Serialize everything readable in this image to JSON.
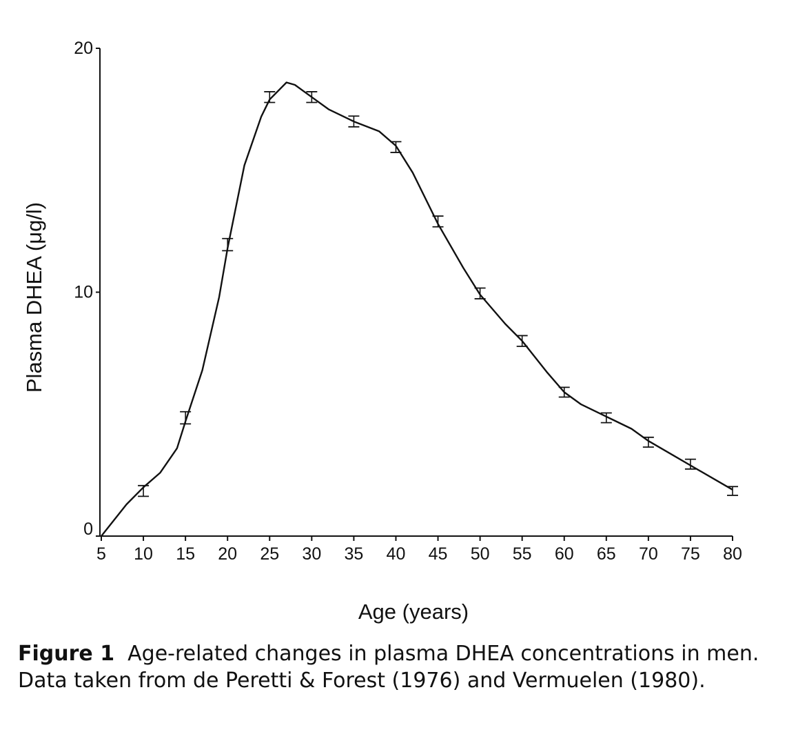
{
  "chart_data": {
    "type": "line",
    "xlabel": "Age (years)",
    "ylabel": "Plasma DHEA (μg/l)",
    "xlim": [
      5,
      80
    ],
    "ylim": [
      0,
      20
    ],
    "xticks": [
      5,
      10,
      15,
      20,
      25,
      30,
      35,
      40,
      45,
      50,
      55,
      60,
      65,
      70,
      75,
      80
    ],
    "yticks": [
      0,
      10,
      20
    ],
    "grid": false,
    "curve": {
      "x": [
        5,
        8,
        10,
        12,
        14,
        15,
        17,
        19,
        20,
        22,
        24,
        25,
        27,
        28,
        30,
        32,
        35,
        38,
        40,
        42,
        45,
        48,
        50,
        53,
        55,
        58,
        60,
        62,
        65,
        68,
        70,
        73,
        75,
        78,
        80
      ],
      "y": [
        0.0,
        1.3,
        2.0,
        2.6,
        3.6,
        4.7,
        6.8,
        9.8,
        11.8,
        15.2,
        17.2,
        17.9,
        18.6,
        18.5,
        18.0,
        17.5,
        17.0,
        16.6,
        16.0,
        14.9,
        12.8,
        11.0,
        9.9,
        8.7,
        8.0,
        6.7,
        5.9,
        5.4,
        4.9,
        4.4,
        3.9,
        3.3,
        2.9,
        2.3,
        1.9
      ]
    },
    "errorbars": {
      "x": [
        10,
        15,
        20,
        25,
        30,
        35,
        40,
        45,
        50,
        55,
        60,
        65,
        70,
        75,
        80
      ],
      "y": [
        1.85,
        4.85,
        11.95,
        18.0,
        18.0,
        17.0,
        15.95,
        12.9,
        9.95,
        8.0,
        5.9,
        4.85,
        3.85,
        2.95,
        1.85
      ],
      "err": [
        0.22,
        0.25,
        0.25,
        0.22,
        0.22,
        0.22,
        0.22,
        0.22,
        0.22,
        0.22,
        0.2,
        0.2,
        0.2,
        0.2,
        0.18
      ]
    }
  },
  "caption": {
    "label": "Figure 1",
    "text": "Age-related changes in plasma DHEA concentrations in men. Data taken from de Peretti & Forest (1976) and Vermuelen (1980)."
  }
}
